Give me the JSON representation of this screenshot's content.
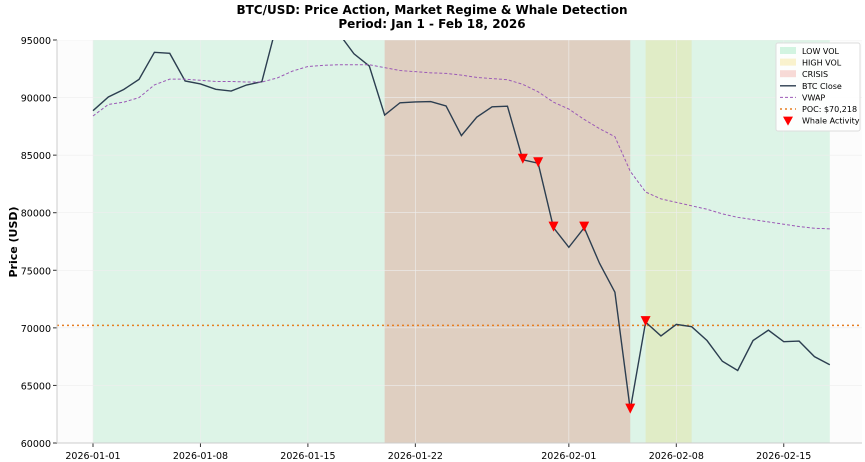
{
  "chart_data": {
    "type": "line",
    "title": "BTC/USD: Price Action, Market Regime & Whale Detection",
    "subtitle": "Period: Jan 1 - Feb 18, 2026",
    "xlabel": "",
    "ylabel": "Price (USD)",
    "ylim": [
      60000,
      95000
    ],
    "start_date": "2026-01-01",
    "xticks": [
      {
        "day": 0,
        "label": "2026-01-01"
      },
      {
        "day": 7,
        "label": "2026-01-08"
      },
      {
        "day": 14,
        "label": "2026-01-15"
      },
      {
        "day": 21,
        "label": "2026-01-22"
      },
      {
        "day": 31,
        "label": "2026-02-01"
      },
      {
        "day": 38,
        "label": "2026-02-08"
      },
      {
        "day": 45,
        "label": "2026-02-15"
      }
    ],
    "yticks": [
      60000,
      65000,
      70000,
      75000,
      80000,
      85000,
      90000,
      95000
    ],
    "regimes": [
      {
        "name": "LOW VOL",
        "start": 0,
        "end": 48,
        "color": "#2ecc71"
      },
      {
        "name": "CRISIS",
        "start": 19,
        "end": 35,
        "color": "#e74c3c"
      },
      {
        "name": "HIGH VOL",
        "start": 36,
        "end": 39,
        "color": "#f1c40f"
      }
    ],
    "series": [
      {
        "name": "BTC Close",
        "color": "#2c3e50",
        "style": "solid",
        "values": [
          88860,
          90050,
          90700,
          91580,
          93930,
          93840,
          91440,
          91180,
          90720,
          90570,
          91090,
          91380,
          96500,
          98000,
          97500,
          96800,
          95600,
          93800,
          92740,
          88480,
          89550,
          89620,
          89650,
          89270,
          86700,
          88300,
          89200,
          89250,
          84600,
          84300,
          78700,
          77000,
          78700,
          75600,
          73100,
          62900,
          70500,
          69300,
          70300,
          70100,
          68900,
          67100,
          66300,
          68900,
          69800,
          68800,
          68850,
          67500,
          66800
        ]
      },
      {
        "name": "VWAP",
        "color": "#9b59b6",
        "style": "dashed",
        "values": [
          88400,
          89400,
          89600,
          90000,
          91100,
          91600,
          91600,
          91500,
          91400,
          91400,
          91350,
          91350,
          91700,
          92300,
          92700,
          92800,
          92850,
          92850,
          92850,
          92600,
          92350,
          92250,
          92150,
          92100,
          91950,
          91750,
          91650,
          91550,
          91150,
          90500,
          89600,
          89000,
          88100,
          87300,
          86600,
          83600,
          81800,
          81200,
          80900,
          80600,
          80300,
          79900,
          79600,
          79400,
          79200,
          79000,
          78800,
          78650,
          78600
        ]
      }
    ],
    "poc": {
      "label": "POC: $70,218",
      "value": 70218,
      "color": "#e67e22"
    },
    "whales": {
      "label": "Whale Activity",
      "color": "#ff0000",
      "points": [
        {
          "day": 28,
          "value": 84600
        },
        {
          "day": 29,
          "value": 84300
        },
        {
          "day": 30,
          "value": 78700
        },
        {
          "day": 32,
          "value": 78700
        },
        {
          "day": 35,
          "value": 62900
        },
        {
          "day": 36,
          "value": 70500
        }
      ]
    },
    "legend_placement": "top-right"
  }
}
